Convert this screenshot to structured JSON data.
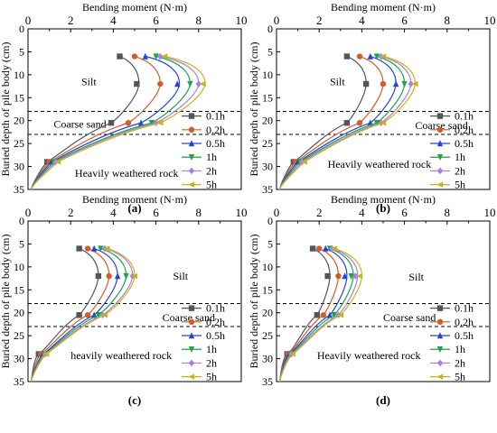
{
  "chart_data": [
    {
      "type": "line",
      "panel_label": "(a)",
      "xlabel": "Bending moment (N·m)",
      "ylabel": "Buried depth of pile body (cm)",
      "xlim": [
        0,
        10
      ],
      "ylim": [
        0,
        35
      ],
      "y_inverted": true,
      "x_axis_position": "top",
      "x_ticks": [
        "0",
        "2",
        "4",
        "6",
        "8",
        "10"
      ],
      "y_ticks": [
        "0",
        "5",
        "10",
        "15",
        "20",
        "25",
        "30",
        "35"
      ],
      "legend_position": "right",
      "layer_lines": [
        18,
        23
      ],
      "layer_labels": [
        {
          "text": "Silt",
          "x": 2.5,
          "y": 11.5
        },
        {
          "text": "Coarse sand",
          "x": 1.2,
          "y": 20.7
        },
        {
          "text": "Heavily weathered rock",
          "x": 2.2,
          "y": 31.5
        }
      ],
      "markers_depth": [
        6,
        12,
        20.5,
        29
      ],
      "series": [
        {
          "name": "0.1h",
          "color": "#555555",
          "marker": "square",
          "values": [
            [
              4.3,
              6
            ],
            [
              5.1,
              12
            ],
            [
              3.9,
              20.5
            ],
            [
              0.9,
              29
            ]
          ],
          "peak": [
            5.2,
            11.8
          ]
        },
        {
          "name": "0.2h",
          "color": "#d65a2a",
          "marker": "circle",
          "values": [
            [
              5.0,
              6
            ],
            [
              6.2,
              12
            ],
            [
              4.7,
              20.5
            ],
            [
              1.0,
              29
            ]
          ],
          "peak": [
            6.2,
            11.8
          ]
        },
        {
          "name": "0.5h",
          "color": "#2444d6",
          "marker": "triangle-up",
          "values": [
            [
              5.5,
              6
            ],
            [
              7.0,
              12
            ],
            [
              5.3,
              20.5
            ],
            [
              1.1,
              29
            ]
          ],
          "peak": [
            7.1,
            11.8
          ]
        },
        {
          "name": "1h",
          "color": "#1aa54a",
          "marker": "triangle-down",
          "values": [
            [
              6.0,
              6
            ],
            [
              7.6,
              12
            ],
            [
              5.8,
              20.5
            ],
            [
              1.2,
              29
            ]
          ],
          "peak": [
            7.6,
            11.8
          ]
        },
        {
          "name": "2h",
          "color": "#b07ed9",
          "marker": "diamond",
          "values": [
            [
              6.2,
              6
            ],
            [
              8.0,
              12
            ],
            [
              6.0,
              20.5
            ],
            [
              1.3,
              29
            ]
          ],
          "peak": [
            8.0,
            11.8
          ]
        },
        {
          "name": "5h",
          "color": "#c9b21f",
          "marker": "triangle-left",
          "values": [
            [
              6.4,
              6
            ],
            [
              8.2,
              12
            ],
            [
              6.2,
              20.5
            ],
            [
              1.4,
              29
            ]
          ],
          "peak": [
            8.3,
            11.8
          ]
        }
      ]
    },
    {
      "type": "line",
      "panel_label": "(b)",
      "xlabel": "Bending moment (N·m)",
      "ylabel": "Buried depth of pile body (cm)",
      "xlim": [
        0,
        10
      ],
      "ylim": [
        0,
        35
      ],
      "y_inverted": true,
      "x_axis_position": "top",
      "x_ticks": [
        "0",
        "2",
        "4",
        "6",
        "8",
        "10"
      ],
      "y_ticks": [
        "0",
        "5",
        "10",
        "15",
        "20",
        "25",
        "30",
        "35"
      ],
      "legend_position": "right",
      "layer_lines": [
        18,
        23
      ],
      "layer_labels": [
        {
          "text": "Silt",
          "x": 2.5,
          "y": 11.5
        },
        {
          "text": "Coarse sand",
          "x": 6.5,
          "y": 21.0
        },
        {
          "text": "Heavily weathered rock",
          "x": 2.4,
          "y": 29.5
        }
      ],
      "markers_depth": [
        6,
        12,
        20.5,
        29
      ],
      "series": [
        {
          "name": "0.1h",
          "color": "#555555",
          "marker": "square",
          "values": [
            [
              3.3,
              6
            ],
            [
              4.2,
              12
            ],
            [
              3.3,
              20.5
            ],
            [
              0.8,
              29
            ]
          ],
          "peak": [
            4.2,
            11.8
          ]
        },
        {
          "name": "0.2h",
          "color": "#d65a2a",
          "marker": "circle",
          "values": [
            [
              3.9,
              6
            ],
            [
              5.0,
              12
            ],
            [
              3.9,
              20.5
            ],
            [
              0.9,
              29
            ]
          ],
          "peak": [
            5.0,
            11.8
          ]
        },
        {
          "name": "0.5h",
          "color": "#2444d6",
          "marker": "triangle-up",
          "values": [
            [
              4.4,
              6
            ],
            [
              5.6,
              12
            ],
            [
              4.4,
              20.5
            ],
            [
              1.0,
              29
            ]
          ],
          "peak": [
            5.6,
            11.8
          ]
        },
        {
          "name": "1h",
          "color": "#1aa54a",
          "marker": "triangle-down",
          "values": [
            [
              4.7,
              6
            ],
            [
              6.0,
              12
            ],
            [
              4.7,
              20.5
            ],
            [
              1.1,
              29
            ]
          ],
          "peak": [
            6.0,
            11.8
          ]
        },
        {
          "name": "2h",
          "color": "#b07ed9",
          "marker": "diamond",
          "values": [
            [
              4.9,
              6
            ],
            [
              6.3,
              12
            ],
            [
              4.9,
              20.5
            ],
            [
              1.2,
              29
            ]
          ],
          "peak": [
            6.3,
            11.8
          ]
        },
        {
          "name": "5h",
          "color": "#c9b21f",
          "marker": "triangle-left",
          "values": [
            [
              5.0,
              6
            ],
            [
              6.5,
              12
            ],
            [
              5.0,
              20.5
            ],
            [
              1.3,
              29
            ]
          ],
          "peak": [
            6.5,
            11.8
          ]
        }
      ]
    },
    {
      "type": "line",
      "panel_label": "(c)",
      "xlabel": "Bending moment (N·m)",
      "ylabel": "Buried depth of pile body (cm)",
      "xlim": [
        0,
        10
      ],
      "ylim": [
        0,
        35
      ],
      "y_inverted": true,
      "x_axis_position": "top",
      "x_ticks": [
        "0",
        "2",
        "4",
        "6",
        "8",
        "10"
      ],
      "y_ticks": [
        "0",
        "5",
        "10",
        "15",
        "20",
        "25",
        "30",
        "35"
      ],
      "legend_position": "right",
      "layer_lines": [
        18,
        23
      ],
      "layer_labels": [
        {
          "text": "Silt",
          "x": 6.8,
          "y": 12.0
        },
        {
          "text": "Coarse sand",
          "x": 6.3,
          "y": 21.0
        },
        {
          "text": "heavily weathered rock",
          "x": 2.0,
          "y": 29.3
        }
      ],
      "markers_depth": [
        6,
        12,
        20.5,
        29
      ],
      "series": [
        {
          "name": "0.1h",
          "color": "#555555",
          "marker": "square",
          "values": [
            [
              2.4,
              6
            ],
            [
              3.3,
              12
            ],
            [
              2.4,
              20.5
            ],
            [
              0.5,
              29
            ]
          ],
          "peak": [
            3.3,
            11.8
          ]
        },
        {
          "name": "0.2h",
          "color": "#d65a2a",
          "marker": "circle",
          "values": [
            [
              2.8,
              6
            ],
            [
              3.8,
              12
            ],
            [
              2.8,
              20.5
            ],
            [
              0.6,
              29
            ]
          ],
          "peak": [
            3.8,
            11.8
          ]
        },
        {
          "name": "0.5h",
          "color": "#2444d6",
          "marker": "triangle-up",
          "values": [
            [
              3.1,
              6
            ],
            [
              4.2,
              12
            ],
            [
              3.1,
              20.5
            ],
            [
              0.7,
              29
            ]
          ],
          "peak": [
            4.2,
            11.8
          ]
        },
        {
          "name": "1h",
          "color": "#1aa54a",
          "marker": "triangle-down",
          "values": [
            [
              3.4,
              6
            ],
            [
              4.6,
              12
            ],
            [
              3.3,
              20.5
            ],
            [
              0.75,
              29
            ]
          ],
          "peak": [
            4.6,
            11.8
          ]
        },
        {
          "name": "2h",
          "color": "#b07ed9",
          "marker": "diamond",
          "values": [
            [
              3.6,
              6
            ],
            [
              4.9,
              12
            ],
            [
              3.5,
              20.5
            ],
            [
              0.8,
              29
            ]
          ],
          "peak": [
            4.9,
            11.8
          ]
        },
        {
          "name": "5h",
          "color": "#c9b21f",
          "marker": "triangle-left",
          "values": [
            [
              3.7,
              6
            ],
            [
              5.0,
              12
            ],
            [
              3.6,
              20.5
            ],
            [
              0.85,
              29
            ]
          ],
          "peak": [
            5.0,
            11.8
          ]
        }
      ]
    },
    {
      "type": "line",
      "panel_label": "(d)",
      "xlabel": "Bending moment (N·m)",
      "ylabel": "Buried depth of pile body (cm)",
      "xlim": [
        0,
        10
      ],
      "ylim": [
        0,
        35
      ],
      "y_inverted": true,
      "x_axis_position": "top",
      "x_ticks": [
        "0",
        "2",
        "4",
        "6",
        "8",
        "10"
      ],
      "y_ticks": [
        "0",
        "5",
        "10",
        "15",
        "20",
        "25",
        "30",
        "35"
      ],
      "legend_position": "right",
      "layer_lines": [
        18,
        23
      ],
      "layer_labels": [
        {
          "text": "Silt",
          "x": 6.2,
          "y": 12.2
        },
        {
          "text": "Coarse sand",
          "x": 5.0,
          "y": 21.0
        },
        {
          "text": "Heavily weathered rock",
          "x": 1.9,
          "y": 29.3
        }
      ],
      "markers_depth": [
        6,
        12,
        20.5,
        29
      ],
      "series": [
        {
          "name": "0.1h",
          "color": "#555555",
          "marker": "square",
          "values": [
            [
              1.7,
              6
            ],
            [
              2.4,
              12
            ],
            [
              1.9,
              20.5
            ],
            [
              0.5,
              29
            ]
          ],
          "peak": [
            2.5,
            11.8
          ]
        },
        {
          "name": "0.2h",
          "color": "#d65a2a",
          "marker": "circle",
          "values": [
            [
              2.0,
              6
            ],
            [
              2.9,
              12
            ],
            [
              2.2,
              20.5
            ],
            [
              0.55,
              29
            ]
          ],
          "peak": [
            2.9,
            11.8
          ]
        },
        {
          "name": "0.5h",
          "color": "#2444d6",
          "marker": "triangle-up",
          "values": [
            [
              2.3,
              6
            ],
            [
              3.2,
              12
            ],
            [
              2.5,
              20.5
            ],
            [
              0.6,
              29
            ]
          ],
          "peak": [
            3.3,
            11.8
          ]
        },
        {
          "name": "1h",
          "color": "#1aa54a",
          "marker": "triangle-down",
          "values": [
            [
              2.5,
              6
            ],
            [
              3.5,
              12
            ],
            [
              2.7,
              20.5
            ],
            [
              0.65,
              29
            ]
          ],
          "peak": [
            3.6,
            11.8
          ]
        },
        {
          "name": "2h",
          "color": "#b07ed9",
          "marker": "diamond",
          "values": [
            [
              2.6,
              6
            ],
            [
              3.7,
              12
            ],
            [
              2.9,
              20.5
            ],
            [
              0.7,
              29
            ]
          ],
          "peak": [
            3.8,
            11.8
          ]
        },
        {
          "name": "5h",
          "color": "#c9b21f",
          "marker": "triangle-left",
          "values": [
            [
              2.7,
              6
            ],
            [
              3.9,
              12
            ],
            [
              3.0,
              20.5
            ],
            [
              0.75,
              29
            ]
          ],
          "peak": [
            4.0,
            11.8
          ]
        }
      ]
    }
  ]
}
